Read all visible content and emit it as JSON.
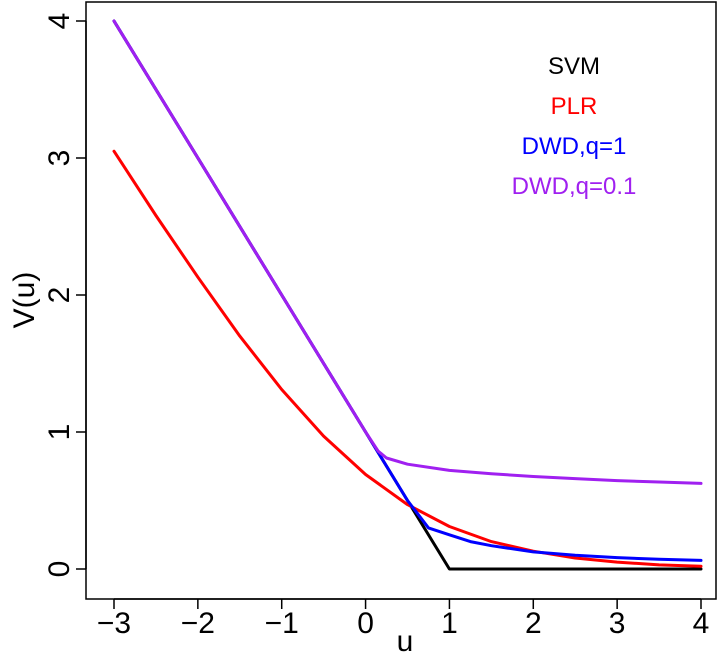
{
  "chart_data": {
    "type": "line",
    "title": "",
    "xlabel": "u",
    "ylabel": "V(u)",
    "xlim": [
      -3,
      4
    ],
    "ylim": [
      0,
      4
    ],
    "xticks": [
      "−3",
      "−2",
      "−1",
      "0",
      "1",
      "2",
      "3",
      "4"
    ],
    "yticks": [
      "0",
      "1",
      "2",
      "3",
      "4"
    ],
    "grid": false,
    "legend": "top-right",
    "series": [
      {
        "name": "SVM",
        "color": "#000000",
        "x": [
          -3,
          -2,
          -1,
          0,
          0.5,
          1,
          2,
          3,
          4
        ],
        "y": [
          4,
          3,
          2,
          1,
          0.5,
          0,
          0,
          0,
          0
        ]
      },
      {
        "name": "PLR",
        "color": "#ff0000",
        "x": [
          -3,
          -2.5,
          -2,
          -1.5,
          -1,
          -0.5,
          0,
          0.5,
          1,
          1.5,
          2,
          2.5,
          3,
          3.5,
          4
        ],
        "y": [
          3.05,
          2.58,
          2.13,
          1.7,
          1.31,
          0.97,
          0.69,
          0.47,
          0.31,
          0.2,
          0.13,
          0.08,
          0.05,
          0.03,
          0.02
        ]
      },
      {
        "name": "DWD,q=1",
        "color": "#0000ff",
        "x": [
          -3,
          -2,
          -1,
          0,
          0.5,
          0.75,
          1,
          1.25,
          1.5,
          2,
          2.5,
          3,
          3.5,
          4
        ],
        "y": [
          4,
          3,
          2,
          1,
          0.5,
          0.3,
          0.25,
          0.2,
          0.17,
          0.125,
          0.1,
          0.083,
          0.071,
          0.0625
        ]
      },
      {
        "name": "DWD,q=0.1",
        "color": "#a020f0",
        "x": [
          -3,
          -2,
          -1,
          0,
          0.15,
          0.25,
          0.5,
          1,
          1.5,
          2,
          2.5,
          3,
          3.5,
          4
        ],
        "y": [
          4,
          3,
          2,
          1,
          0.86,
          0.81,
          0.765,
          0.72,
          0.695,
          0.675,
          0.66,
          0.645,
          0.635,
          0.625
        ]
      }
    ]
  }
}
